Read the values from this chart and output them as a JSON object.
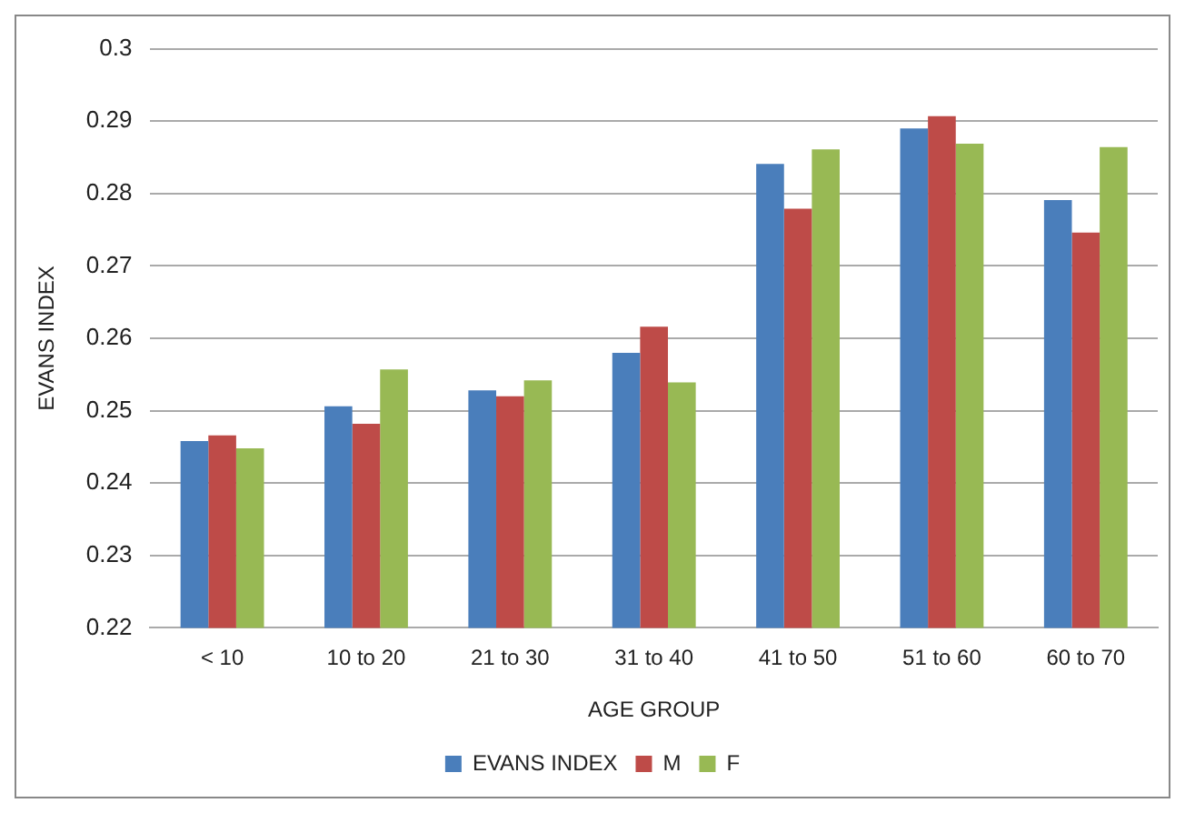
{
  "chart_data": {
    "type": "bar",
    "xlabel": "AGE GROUP",
    "ylabel": "EVANS INDEX",
    "categories": [
      "< 10",
      "10 to 20",
      "21 to 30",
      "31 to 40",
      "41 to 50",
      "51 to 60",
      "60 to 70"
    ],
    "series": [
      {
        "name": "EVANS INDEX",
        "color": "#4a7ebb",
        "values": [
          0.2458,
          0.2506,
          0.2528,
          0.258,
          0.2841,
          0.289,
          0.2791
        ]
      },
      {
        "name": "M",
        "color": "#be4b48",
        "values": [
          0.2466,
          0.2482,
          0.252,
          0.2616,
          0.2779,
          0.2907,
          0.2746
        ]
      },
      {
        "name": "F",
        "color": "#98b954",
        "values": [
          0.2448,
          0.2557,
          0.2542,
          0.2539,
          0.2861,
          0.2869,
          0.2864
        ]
      }
    ],
    "ylim": [
      0.22,
      0.3
    ],
    "yticks": [
      0.22,
      0.23,
      0.24,
      0.25,
      0.26,
      0.27,
      0.28,
      0.29,
      0.3
    ],
    "grid": "y",
    "legend": "bottom"
  }
}
